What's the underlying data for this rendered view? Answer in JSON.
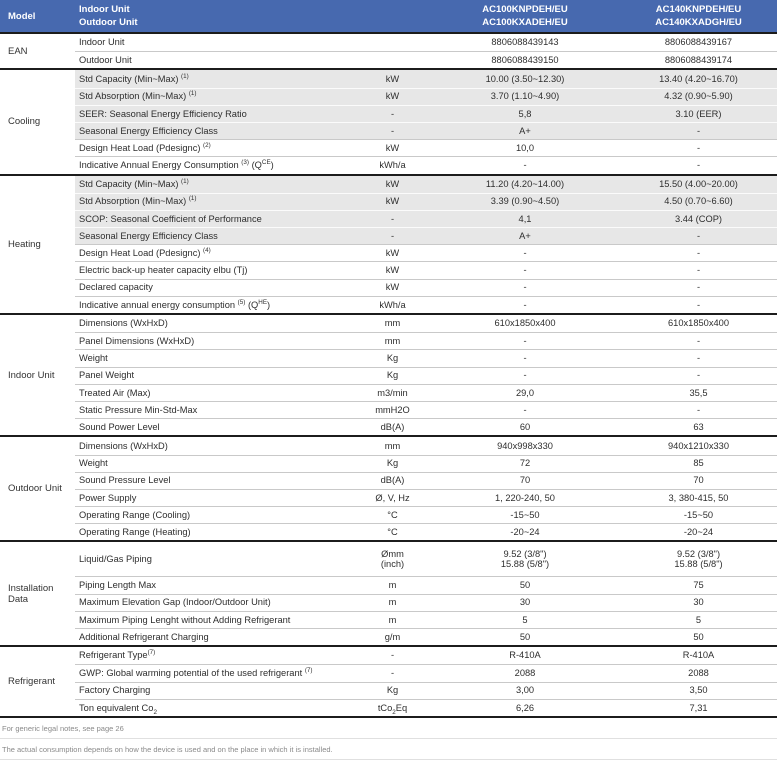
{
  "colors": {
    "header_bg": "#4769af",
    "shaded_row": "#e7e7e7",
    "border_dark": "#1c1c1c"
  },
  "header": {
    "model_label": "Model",
    "indoor_label": "Indoor Unit",
    "outdoor_label": "Outdoor Unit",
    "models": [
      {
        "indoor": "AC100KNPDEH/EU",
        "outdoor": "AC100KXADEH/EU"
      },
      {
        "indoor": "AC140KNPDEH/EU",
        "outdoor": "AC140KXADGH/EU"
      }
    ]
  },
  "sections": [
    {
      "name": "EAN",
      "rows": [
        {
          "label": "Indoor Unit",
          "unit": "",
          "values": [
            "8806088439143",
            "8806088439167"
          ]
        },
        {
          "label": "Outdoor Unit",
          "unit": "",
          "values": [
            "8806088439150",
            "8806088439174"
          ]
        }
      ]
    },
    {
      "name": "Cooling",
      "rows": [
        {
          "label": [
            {
              "t": "Std Capacity (Min~Max) "
            },
            {
              "s": "(1)"
            }
          ],
          "unit": "kW",
          "values": [
            "10.00 (3.50~12.30)",
            "13.40 (4.20~16.70)"
          ],
          "shaded": true
        },
        {
          "label": [
            {
              "t": "Std Absorption (Min~Max) "
            },
            {
              "s": "(1)"
            }
          ],
          "unit": "kW",
          "values": [
            "3.70 (1.10~4.90)",
            "4.32 (0.90~5.90)"
          ],
          "shaded": true
        },
        {
          "label": "SEER: Seasonal Energy Efficiency Ratio",
          "unit": "-",
          "values": [
            "5,8",
            "3.10 (EER)"
          ],
          "shaded": true
        },
        {
          "label": "Seasonal Energy Efficiency Class",
          "unit": "-",
          "values": [
            "A+",
            "-"
          ],
          "shaded": true
        },
        {
          "label": [
            {
              "t": "Design Heat Load (Pdesignc) "
            },
            {
              "s": "(2)"
            }
          ],
          "unit": "kW",
          "values": [
            "10,0",
            "-"
          ]
        },
        {
          "label": [
            {
              "t": "Indicative Annual Energy Consumption "
            },
            {
              "s": "(3)"
            },
            {
              "t": " (Q"
            },
            {
              "s": "CE"
            },
            {
              "t": ")"
            }
          ],
          "unit": "kWh/a",
          "values": [
            "-",
            "-"
          ]
        }
      ]
    },
    {
      "name": "Heating",
      "rows": [
        {
          "label": [
            {
              "t": "Std Capacity (Min~Max) "
            },
            {
              "s": "(1)"
            }
          ],
          "unit": "kW",
          "values": [
            "11.20 (4.20~14.00)",
            "15.50 (4.00~20.00)"
          ],
          "shaded": true
        },
        {
          "label": [
            {
              "t": "Std Absorption (Min~Max) "
            },
            {
              "s": "(1)"
            }
          ],
          "unit": "kW",
          "values": [
            "3.39 (0.90~4.50)",
            "4.50 (0.70~6.60)"
          ],
          "shaded": true
        },
        {
          "label": "SCOP: Seasonal Coefficient of Performance",
          "unit": "-",
          "values": [
            "4,1",
            "3.44 (COP)"
          ],
          "shaded": true
        },
        {
          "label": "Seasonal Energy Efficiency Class",
          "unit": "-",
          "values": [
            "A+",
            "-"
          ],
          "shaded": true
        },
        {
          "label": [
            {
              "t": "Design Heat Load (Pdesignc) "
            },
            {
              "s": "(4)"
            }
          ],
          "unit": "kW",
          "values": [
            "-",
            "-"
          ]
        },
        {
          "label": "Electric back-up heater capacity elbu (Tj)",
          "unit": "kW",
          "values": [
            "-",
            "-"
          ]
        },
        {
          "label": "Declared capacity",
          "unit": "kW",
          "values": [
            "-",
            "-"
          ]
        },
        {
          "label": [
            {
              "t": "Indicative annual energy consumption "
            },
            {
              "s": "(5)"
            },
            {
              "t": " (Q"
            },
            {
              "s": "HE"
            },
            {
              "t": ")"
            }
          ],
          "unit": "kWh/a",
          "values": [
            "-",
            "-"
          ]
        }
      ]
    },
    {
      "name": "Indoor Unit",
      "rows": [
        {
          "label": "Dimensions (WxHxD)",
          "unit": "mm",
          "values": [
            "610x1850x400",
            "610x1850x400"
          ]
        },
        {
          "label": "Panel Dimensions (WxHxD)",
          "unit": "mm",
          "values": [
            "-",
            "-"
          ]
        },
        {
          "label": "Weight",
          "unit": "Kg",
          "values": [
            "-",
            "-"
          ]
        },
        {
          "label": "Panel Weight",
          "unit": "Kg",
          "values": [
            "-",
            "-"
          ]
        },
        {
          "label": "Treated Air (Max)",
          "unit": "m3/min",
          "values": [
            "29,0",
            "35,5"
          ]
        },
        {
          "label": "Static Pressure Min-Std-Max",
          "unit": "mmH2O",
          "values": [
            "-",
            "-"
          ]
        },
        {
          "label": "Sound Power Level",
          "unit": "dB(A)",
          "values": [
            "60",
            "63"
          ]
        }
      ]
    },
    {
      "name": "Outdoor Unit",
      "rows": [
        {
          "label": "Dimensions (WxHxD)",
          "unit": "mm",
          "values": [
            "940x998x330",
            "940x1210x330"
          ]
        },
        {
          "label": "Weight",
          "unit": "Kg",
          "values": [
            "72",
            "85"
          ]
        },
        {
          "label": "Sound Pressure Level",
          "unit": "dB(A)",
          "values": [
            "70",
            "70"
          ]
        },
        {
          "label": "Power Supply",
          "unit": "Ø, V, Hz",
          "values": [
            "1, 220-240, 50",
            "3, 380-415, 50"
          ]
        },
        {
          "label": "Operating Range (Cooling)",
          "unit": "°C",
          "values": [
            "-15~50",
            "-15~50"
          ]
        },
        {
          "label": "Operating Range (Heating)",
          "unit": "°C",
          "values": [
            "-20~24",
            "-20~24"
          ]
        }
      ]
    },
    {
      "name": "Installation Data",
      "rows": [
        {
          "label": "Liquid/Gas Piping",
          "unit": {
            "lines": [
              "Ømm",
              "(inch)"
            ]
          },
          "values": [
            {
              "lines": [
                "9.52 (3/8\")",
                "15.88 (5/8\")"
              ]
            },
            {
              "lines": [
                "9.52 (3/8\")",
                "15.88 (5/8\")"
              ]
            }
          ],
          "tall": true
        },
        {
          "label": "Piping Length Max",
          "unit": "m",
          "values": [
            "50",
            "75"
          ]
        },
        {
          "label": "Maximum Elevation Gap (Indoor/Outdoor Unit)",
          "unit": "m",
          "values": [
            "30",
            "30"
          ]
        },
        {
          "label": "Maximum Piping Lenght without Adding Refrigerant",
          "unit": "m",
          "values": [
            "5",
            "5"
          ]
        },
        {
          "label": "Additional Refrigerant Charging",
          "unit": "g/m",
          "values": [
            "50",
            "50"
          ]
        }
      ]
    },
    {
      "name": "Refrigerant",
      "rows": [
        {
          "label": [
            {
              "t": "Refrigerant Type"
            },
            {
              "s": "(7)"
            }
          ],
          "unit": "-",
          "values": [
            "R-410A",
            "R-410A"
          ]
        },
        {
          "label": [
            {
              "t": "GWP: Global warming potential of the used refrigerant "
            },
            {
              "s": "(7)"
            }
          ],
          "unit": "-",
          "values": [
            "2088",
            "2088"
          ]
        },
        {
          "label": "Factory Charging",
          "unit": "Kg",
          "values": [
            "3,00",
            "3,50"
          ]
        },
        {
          "label": [
            {
              "t": "Ton equivalent Co"
            },
            {
              "b": "2"
            }
          ],
          "unit": [
            {
              "t": "tCo"
            },
            {
              "b": "2"
            },
            {
              "t": "Eq"
            }
          ],
          "values": [
            "6,26",
            "7,31"
          ]
        }
      ]
    }
  ],
  "footnotes": [
    "For generic legal notes, see page 26",
    "The actual consumption depends on how the device is used and on the place in which it is installed."
  ]
}
